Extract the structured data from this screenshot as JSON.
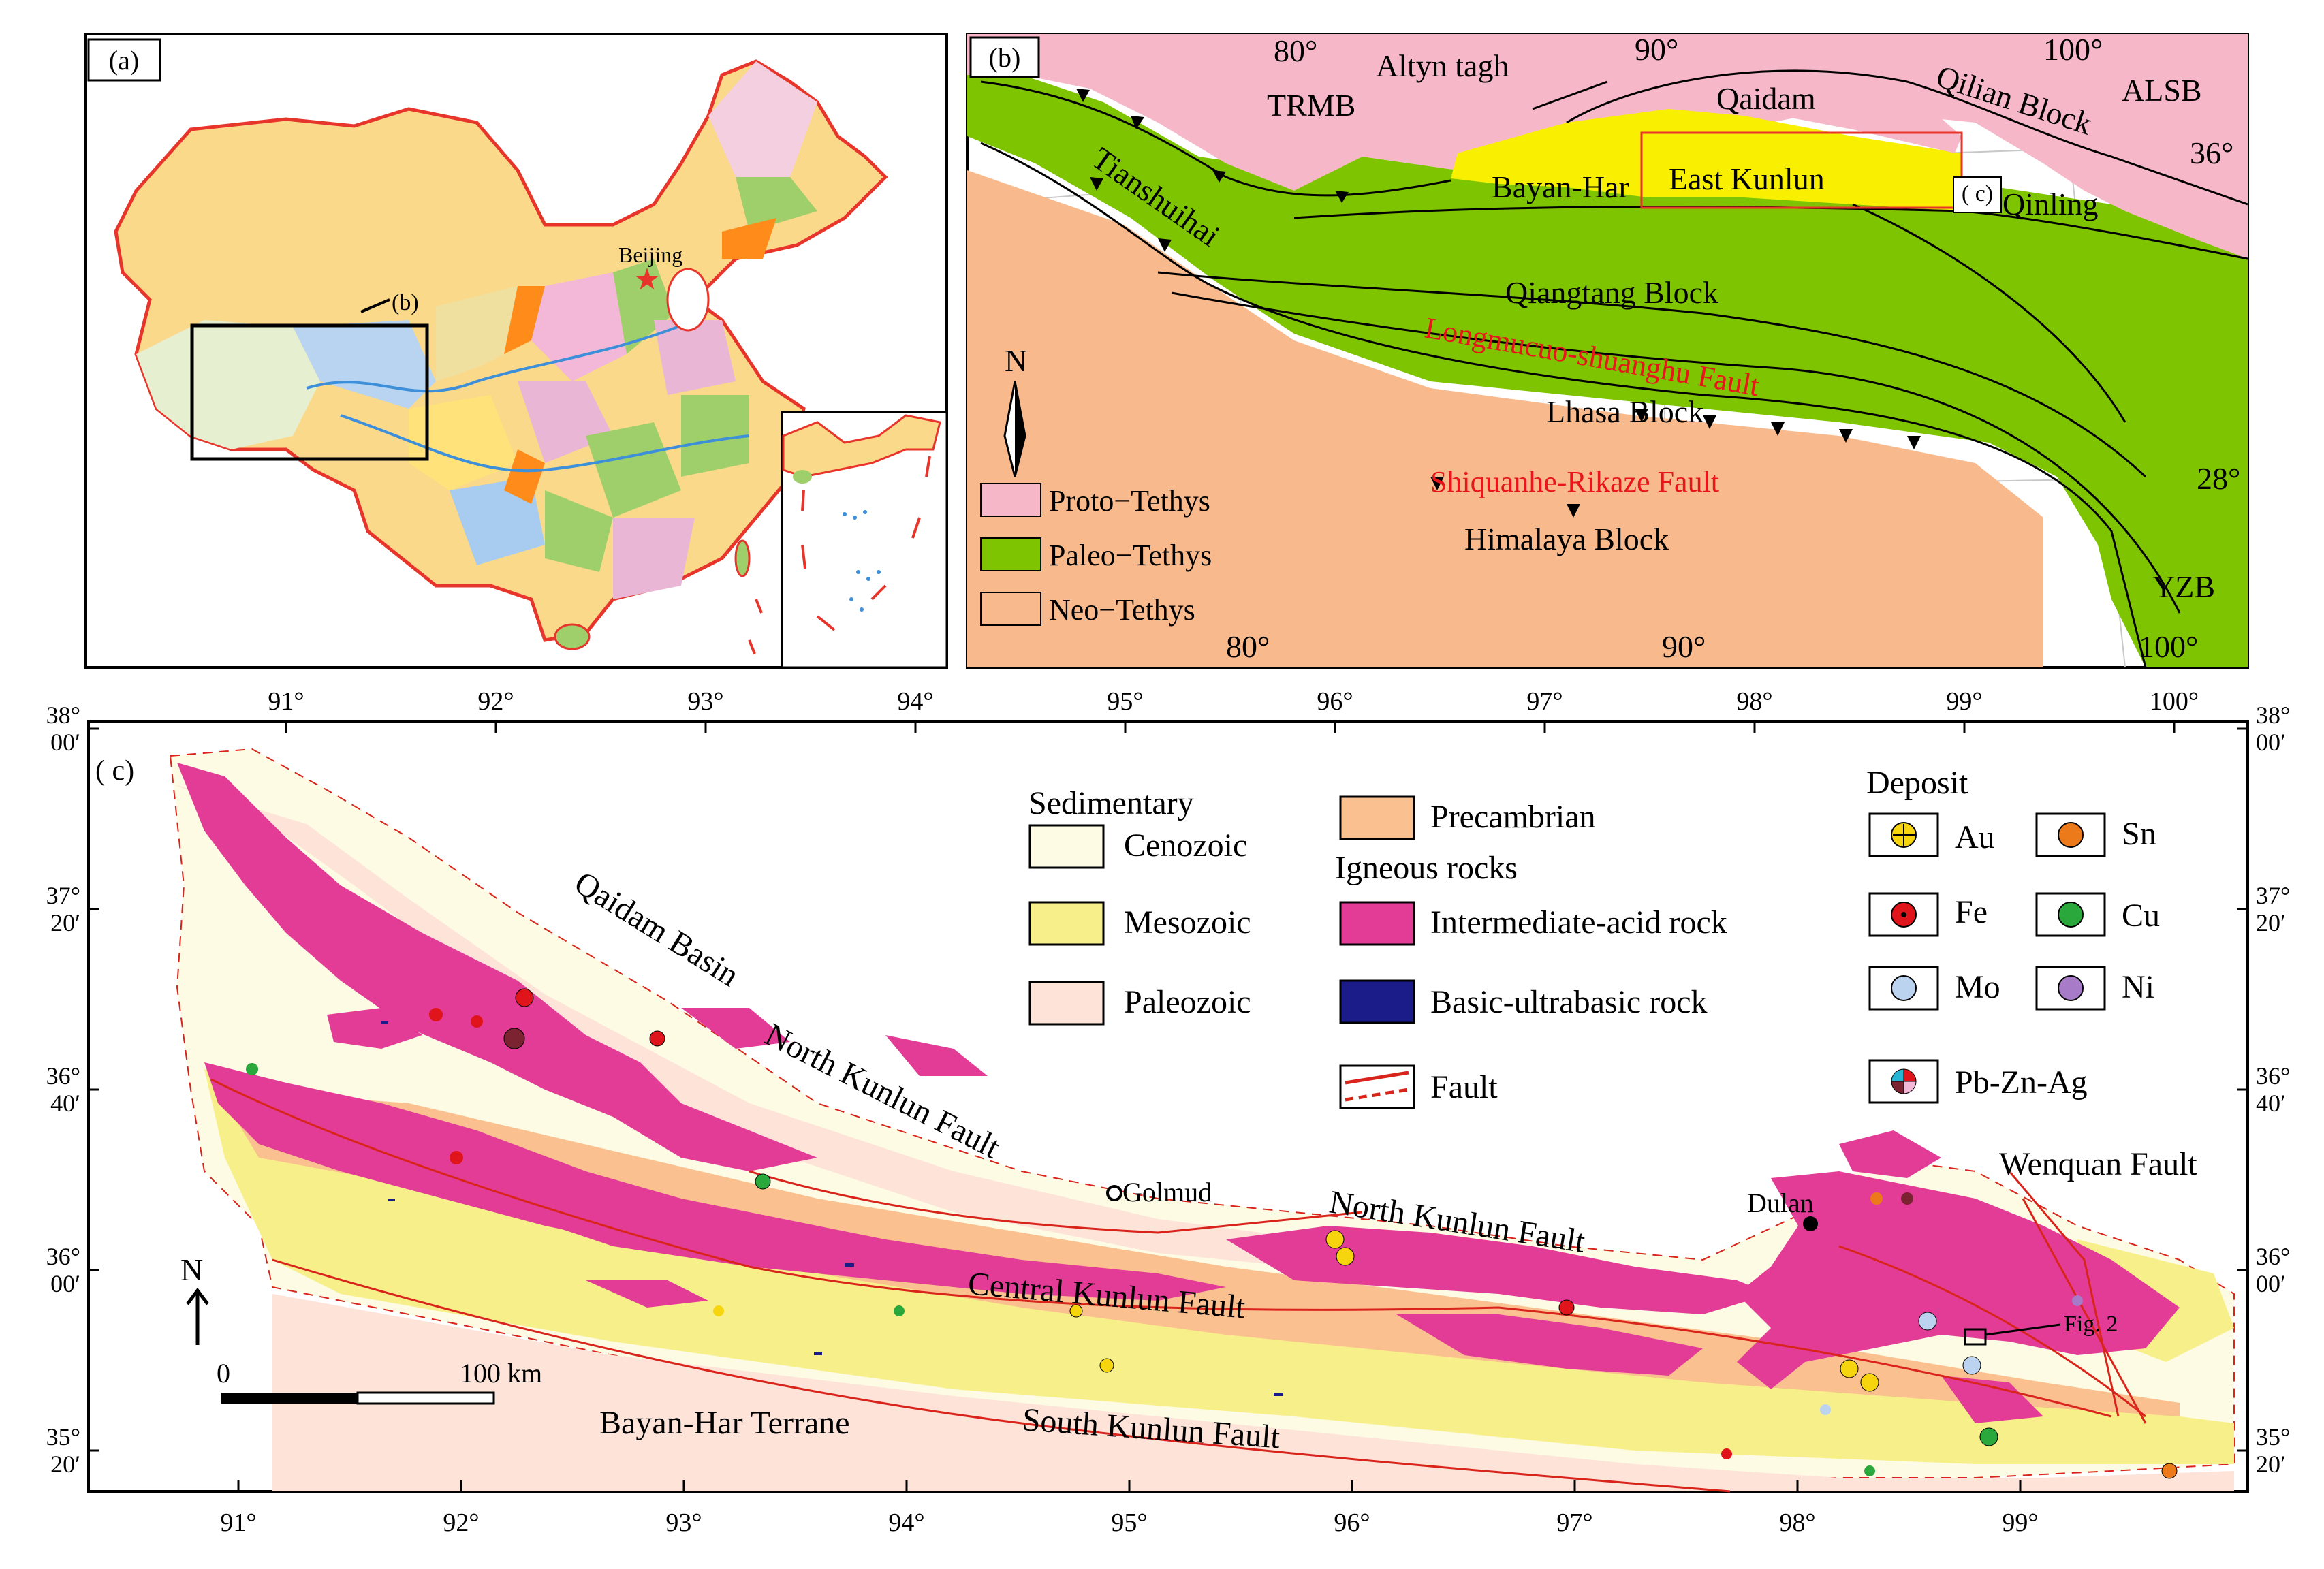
{
  "panel_a": {
    "label": "(a)",
    "capital": "Beijing",
    "box_label": "(b)",
    "colors": {
      "border": "#e8352b",
      "box": "#000000",
      "sea": "#cfe6f5",
      "star": "#e8352b"
    }
  },
  "panel_b": {
    "label": "(b)",
    "blocks": {
      "altyn": "Altyn tagh",
      "trmb": "TRMB",
      "qaidam": "Qaidam",
      "qilian": "Qilian Block",
      "alsb": "ALSB",
      "bayanhar": "Bayan-Har",
      "eastkunlun": "East Kunlun",
      "c_label": "( c)",
      "qinling": "Qinling",
      "tianshuihai": "Tianshuihai",
      "qiangtang": "Qiangtang Block",
      "longmucuo": "Longmucuo-shuanghu Fault",
      "lhasa": "Lhasa Block",
      "shiquanhe": "Shiquanhe-Rikaze Fault",
      "himalaya": "Himalaya Block",
      "yzb": "YZB"
    },
    "coords": {
      "lon80_top": "80°",
      "lon90_top": "90°",
      "lon100_top": "100°",
      "lat36": "36°",
      "lat28": "28°",
      "lon80_bot": "80°",
      "lon90_bot": "90°",
      "lon100_bot": "100°"
    },
    "north": "N",
    "legend": [
      {
        "label": "Proto−Tethys",
        "color": "#f6b8c8"
      },
      {
        "label": "Paleo−Tethys",
        "color": "#7ec400"
      },
      {
        "label": "Neo−Tethys",
        "color": "#f8b98c"
      }
    ]
  },
  "panel_c": {
    "label": "( c)",
    "top_lon": [
      "91°",
      "92°",
      "93°",
      "94°",
      "95°",
      "96°",
      "97°",
      "98°",
      "99°",
      "100°"
    ],
    "bottom_lon": [
      "91°",
      "92°",
      "93°",
      "94°",
      "95°",
      "96°",
      "97°",
      "98°",
      "99°"
    ],
    "lat_left": [
      [
        "38°",
        "00′"
      ],
      [
        "37°",
        "20′"
      ],
      [
        "36°",
        "40′"
      ],
      [
        "36°",
        "00′"
      ],
      [
        "35°",
        "20′"
      ]
    ],
    "lat_right": [
      [
        "38°",
        "00′"
      ],
      [
        "37°",
        "20′"
      ],
      [
        "36°",
        "40′"
      ],
      [
        "36°",
        "00′"
      ],
      [
        "35°",
        "20′"
      ]
    ],
    "places": {
      "qaidam_basin": "Qaidam Basin",
      "north_kunlun_1": "North Kunlun Fault",
      "golmud": "Golmud",
      "north_kunlun_2": "North Kunlun Fault",
      "dulan": "Dulan",
      "wenquan": "Wenquan Fault",
      "central_kunlun": "Central Kunlun Fault",
      "fig2": "Fig. 2",
      "south_kunlun": "South Kunlun Fault",
      "bayanhar_terrane": "Bayan-Har Terrane"
    },
    "north": "N",
    "scale": {
      "zero": "0",
      "km": "100 km"
    },
    "legend": {
      "sedimentary_title": "Sedimentary",
      "cenozoic": "Cenozoic",
      "mesozoic": "Mesozoic",
      "paleozoic": "Paleozoic",
      "precambrian": "Precambrian",
      "igneous_title": "Igneous rocks",
      "intermediate": "Intermediate-acid rock",
      "basic": "Basic-ultrabasic rock",
      "fault": "Fault",
      "deposit_title": "Deposit",
      "au": "Au",
      "sn": "Sn",
      "fe": "Fe",
      "cu": "Cu",
      "mo": "Mo",
      "ni": "Ni",
      "pbznag": "Pb-Zn-Ag"
    },
    "colors": {
      "cenozoic": "#fdfbe3",
      "mesozoic": "#f7f08a",
      "paleozoic": "#fde3d8",
      "precambrian": "#fbc08f",
      "intermediate": "#e23c96",
      "basic": "#1b1b8a",
      "fault": "#d9241c",
      "au": "#f6d40e",
      "sn": "#ec7a1a",
      "fe": "#e0141b",
      "cu": "#2aa83c",
      "mo": "#bcd3f0",
      "ni": "#a77bc8"
    }
  }
}
